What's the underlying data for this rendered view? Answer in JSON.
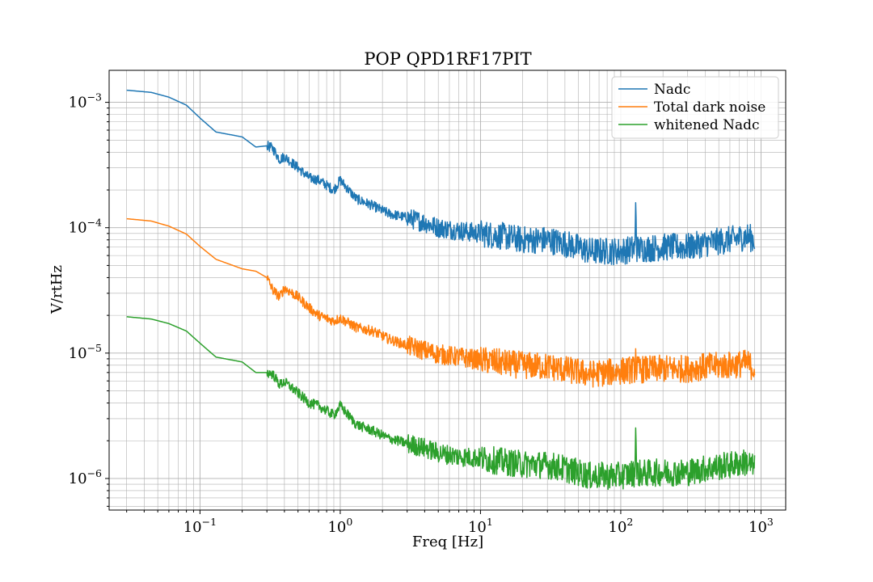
{
  "chart_data": {
    "type": "line",
    "title": "POP QPD1RF17PIT",
    "xlabel": "Freq [Hz]",
    "ylabel": "V/rtHz",
    "xscale": "log",
    "yscale": "log",
    "xlim": [
      0.0225,
      1500
    ],
    "ylim": [
      5.6e-07,
      0.0018
    ],
    "grid": "major and minor",
    "legend_position": "top-right",
    "x_ticks": [
      {
        "value": 0.1,
        "base": "10",
        "exp": "−1"
      },
      {
        "value": 1,
        "base": "10",
        "exp": "0"
      },
      {
        "value": 10,
        "base": "10",
        "exp": "1"
      },
      {
        "value": 100,
        "base": "10",
        "exp": "2"
      },
      {
        "value": 1000,
        "base": "10",
        "exp": "3"
      }
    ],
    "y_ticks": [
      {
        "value": 0.001,
        "base": "10",
        "exp": "−3"
      },
      {
        "value": 0.0001,
        "base": "10",
        "exp": "−4"
      },
      {
        "value": 1e-05,
        "base": "10",
        "exp": "−5"
      },
      {
        "value": 1e-06,
        "base": "10",
        "exp": "−6"
      }
    ],
    "x": [
      0.03,
      0.045,
      0.06,
      0.08,
      0.1,
      0.13,
      0.2,
      0.25,
      0.3,
      0.33,
      0.37,
      0.4,
      0.5,
      0.6,
      0.7,
      0.9,
      1.0,
      1.3,
      1.7,
      2.2,
      3.0,
      4.0,
      5.0,
      7.0,
      10,
      15,
      20,
      30,
      40,
      60,
      80,
      100,
      125,
      150,
      200,
      300,
      400,
      600,
      800,
      900
    ],
    "series": [
      {
        "name": "Nadc",
        "color": "#1f77b4",
        "values": [
          0.00125,
          0.0012,
          0.0011,
          0.00095,
          0.00075,
          0.00058,
          0.00053,
          0.00044,
          0.00045,
          0.00043,
          0.00035,
          0.00037,
          0.0003,
          0.00025,
          0.00024,
          0.0002,
          0.00024,
          0.00017,
          0.00015,
          0.00013,
          0.00012,
          0.00011,
          0.0001,
          9.5e-05,
          9e-05,
          8.5e-05,
          8e-05,
          8e-05,
          7.5e-05,
          6.5e-05,
          6.5e-05,
          6.5e-05,
          6.8e-05,
          6.8e-05,
          7e-05,
          7e-05,
          7.5e-05,
          8e-05,
          8.5e-05,
          8e-05
        ]
      },
      {
        "name": "Total dark noise",
        "color": "#ff7f0e",
        "values": [
          0.000118,
          0.000113,
          0.000103,
          8.9e-05,
          7.1e-05,
          5.6e-05,
          4.7e-05,
          4.5e-05,
          4e-05,
          3.2e-05,
          2.8e-05,
          3.3e-05,
          2.8e-05,
          2.3e-05,
          2e-05,
          1.8e-05,
          1.9e-05,
          1.6e-05,
          1.5e-05,
          1.3e-05,
          1.15e-05,
          1.05e-05,
          9.8e-06,
          9.3e-06,
          8.8e-06,
          8.3e-06,
          8e-06,
          7.8e-06,
          7.4e-06,
          6.8e-06,
          7e-06,
          7.2e-06,
          7.4e-06,
          7.4e-06,
          7.5e-06,
          7.5e-06,
          7.8e-06,
          8e-06,
          8.3e-06,
          7.5e-06
        ]
      },
      {
        "name": "whitened Nadc",
        "color": "#2ca02c",
        "values": [
          1.95e-05,
          1.87e-05,
          1.72e-05,
          1.5e-05,
          1.2e-05,
          9.3e-06,
          8.5e-06,
          7e-06,
          7e-06,
          6.8e-06,
          5.6e-06,
          5.9e-06,
          4.8e-06,
          4e-06,
          3.8e-06,
          3.2e-06,
          3.8e-06,
          2.7e-06,
          2.4e-06,
          2.1e-06,
          1.9e-06,
          1.75e-06,
          1.6e-06,
          1.5e-06,
          1.45e-06,
          1.35e-06,
          1.3e-06,
          1.28e-06,
          1.2e-06,
          1.05e-06,
          1.05e-06,
          1.05e-06,
          1.1e-06,
          1.1e-06,
          1.12e-06,
          1.12e-06,
          1.2e-06,
          1.28e-06,
          1.35e-06,
          1.2e-06
        ]
      }
    ],
    "annotations": [
      {
        "series": "Nadc",
        "peak_x": 128,
        "peak_y": 0.000175
      },
      {
        "series": "Total dark noise",
        "peak_x": 128,
        "peak_y": 1.2e-05
      },
      {
        "series": "whitened Nadc",
        "peak_x": 128,
        "peak_y": 2.8e-06
      }
    ]
  }
}
